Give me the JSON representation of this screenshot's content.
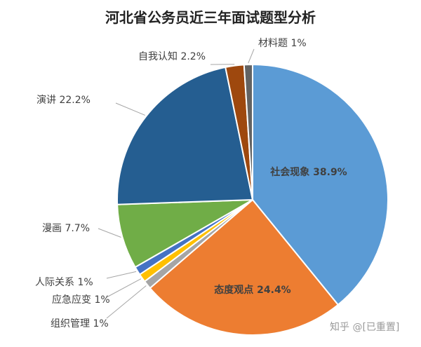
{
  "chart_data": {
    "type": "pie",
    "title": "河北省公务员近三年面试题型分析",
    "slices": [
      {
        "name": "社会现象",
        "value": 38.9,
        "label": "社会现象 38.9%",
        "color": "#5B9BD5"
      },
      {
        "name": "态度观点",
        "value": 24.4,
        "label": "态度观点 24.4%",
        "color": "#ED7D31"
      },
      {
        "name": "组织管理",
        "value": 1,
        "label": "组织管理 1%",
        "color": "#A5A5A5"
      },
      {
        "name": "应急应变",
        "value": 1,
        "label": "应急应变 1%",
        "color": "#FFC000"
      },
      {
        "name": "人际关系",
        "value": 1,
        "label": "人际关系 1%",
        "color": "#4472C4"
      },
      {
        "name": "漫画",
        "value": 7.7,
        "label": "漫画 7.7%",
        "color": "#70AD47"
      },
      {
        "name": "演讲",
        "value": 22.2,
        "label": "演讲 22.2%",
        "color": "#255E91"
      },
      {
        "name": "自我认知",
        "value": 2.2,
        "label": "自我认知 2.2%",
        "color": "#9E480E"
      },
      {
        "name": "材料题",
        "value": 1,
        "label": "材料题 1%",
        "color": "#636363"
      }
    ],
    "legend": "none"
  },
  "watermark": "知乎 @[已重置]"
}
